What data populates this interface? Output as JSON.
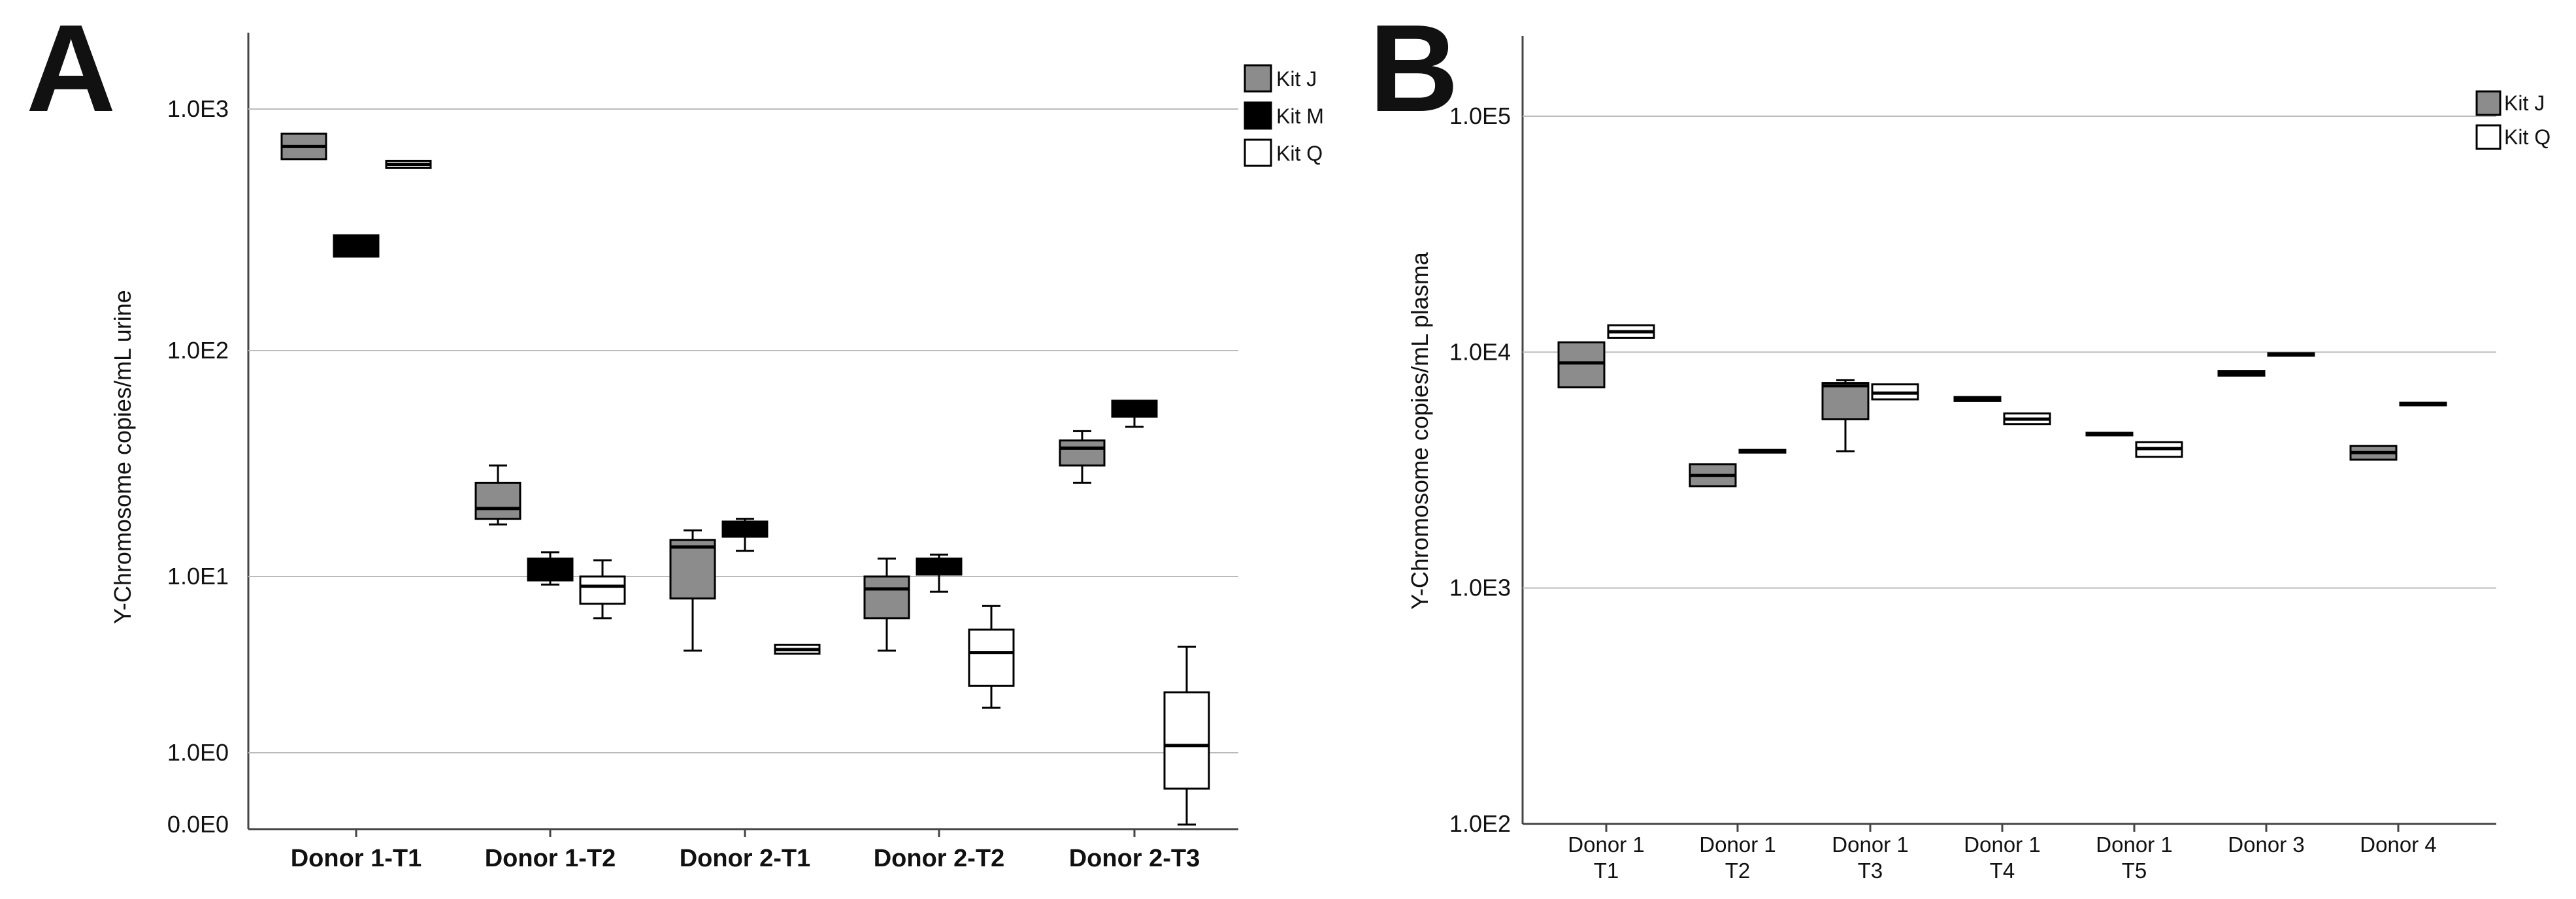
{
  "chart_data": [
    {
      "panel": "A",
      "type": "box",
      "ylabel": "Y-Chromosome copies/mL urine",
      "yscale": "log",
      "yticks": [
        "1.0E3",
        "1.0E2",
        "1.0E1",
        "1.0E0",
        "0.0E0"
      ],
      "ytick_values": [
        1000,
        100,
        10,
        1,
        0
      ],
      "grid": true,
      "legend_position": "top-right",
      "categories": [
        "Donor 1-T1",
        "Donor 1-T2",
        "Donor 2-T1",
        "Donor 2-T2",
        "Donor 2-T3"
      ],
      "series": [
        {
          "name": "Kit J",
          "color": "#8c8c8c",
          "boxes": [
            {
              "min": 620,
              "q1": 620,
              "median": 700,
              "q3": 790,
              "max": 790
            },
            {
              "min": 17,
              "q1": 18,
              "median": 20,
              "q3": 26,
              "max": 31
            },
            {
              "min": 3.8,
              "q1": 7.5,
              "median": 13.5,
              "q3": 14.5,
              "max": 16
            },
            {
              "min": 3.8,
              "q1": 5.8,
              "median": 8.5,
              "q3": 10,
              "max": 12
            },
            {
              "min": 26,
              "q1": 31,
              "median": 37,
              "q3": 40,
              "max": 44
            }
          ]
        },
        {
          "name": "Kit M",
          "color": "#000000",
          "boxes": [
            {
              "min": 245,
              "q1": 245,
              "median": 270,
              "q3": 300,
              "max": 300
            },
            {
              "min": 9,
              "q1": 9.5,
              "median": 10.5,
              "q3": 12,
              "max": 12.8
            },
            {
              "min": 13,
              "q1": 15,
              "median": 16,
              "q3": 17.5,
              "max": 18
            },
            {
              "min": 8.2,
              "q1": 10.2,
              "median": 11.3,
              "q3": 12,
              "max": 12.5
            },
            {
              "min": 46,
              "q1": 51,
              "median": 56,
              "q3": 60,
              "max": 60
            }
          ]
        },
        {
          "name": "Kit Q",
          "color": "#ffffff",
          "boxes": [
            {
              "min": 570,
              "q1": 570,
              "median": 590,
              "q3": 610,
              "max": 610
            },
            {
              "min": 5.8,
              "q1": 7,
              "median": 8.8,
              "q3": 10,
              "max": 11.8
            },
            null,
            {
              "min": 1.8,
              "q1": 2.4,
              "median": 3.7,
              "q3": 5,
              "max": 6.8
            },
            {
              "min": 0,
              "q1": 0.5,
              "median": 1.1,
              "q3": 2.2,
              "max": 4
            }
          ]
        }
      ],
      "kit_q_donor2_t1": {
        "min": 3.65,
        "q1": 3.65,
        "median": 3.85,
        "q3": 4.1,
        "max": 4.1
      }
    },
    {
      "panel": "B",
      "type": "box",
      "ylabel": "Y-Chromosome copies/mL plasma",
      "yscale": "log",
      "yticks": [
        "1.0E5",
        "1.0E4",
        "1.0E3",
        "1.0E2"
      ],
      "ytick_values": [
        100000,
        10000,
        1000,
        100
      ],
      "grid": true,
      "legend_position": "top-right",
      "categories": [
        {
          "line1": "Donor 1",
          "line2": "T1"
        },
        {
          "line1": "Donor 1",
          "line2": "T2"
        },
        {
          "line1": "Donor 1",
          "line2": "T3"
        },
        {
          "line1": "Donor 1",
          "line2": "T4"
        },
        {
          "line1": "Donor 1",
          "line2": "T5"
        },
        {
          "line1": "Donor 3",
          "line2": ""
        },
        {
          "line1": "Donor 4",
          "line2": ""
        }
      ],
      "series": [
        {
          "name": "Kit J",
          "color": "#8c8c8c",
          "boxes": [
            {
              "min": 7100,
              "q1": 7100,
              "median": 9000,
              "q3": 11000,
              "max": 11000
            },
            {
              "min": 2700,
              "q1": 2700,
              "median": 3000,
              "q3": 3350,
              "max": 3350
            },
            {
              "min": 3800,
              "q1": 5200,
              "median": 7200,
              "q3": 7400,
              "max": 7600
            },
            {
              "min": 6200,
              "q1": 6200,
              "median": 6300,
              "q3": 6450,
              "max": 6450
            },
            {
              "min": 4450,
              "q1": 4450,
              "median": 4500,
              "q3": 4550,
              "max": 4550
            },
            {
              "min": 7950,
              "q1": 7950,
              "median": 8100,
              "q3": 8300,
              "max": 8300
            },
            {
              "min": 3500,
              "q1": 3500,
              "median": 3750,
              "q3": 4000,
              "max": 4000
            }
          ]
        },
        {
          "name": "Kit Q",
          "color": "#ffffff",
          "boxes": [
            {
              "min": 11500,
              "q1": 11500,
              "median": 12200,
              "q3": 13000,
              "max": 13000
            },
            {
              "min": 3750,
              "q1": 3750,
              "median": 3800,
              "q3": 3850,
              "max": 3850
            },
            {
              "min": 6300,
              "q1": 6300,
              "median": 6700,
              "q3": 7300,
              "max": 7300
            },
            {
              "min": 4950,
              "q1": 4950,
              "median": 5200,
              "q3": 5500,
              "max": 5500
            },
            {
              "min": 3600,
              "q1": 3600,
              "median": 3900,
              "q3": 4150,
              "max": 4150
            },
            {
              "min": 9700,
              "q1": 9700,
              "median": 9800,
              "q3": 9900,
              "max": 9900
            },
            {
              "min": 6000,
              "q1": 6000,
              "median": 6050,
              "q3": 6100,
              "max": 6100
            }
          ]
        }
      ]
    }
  ]
}
